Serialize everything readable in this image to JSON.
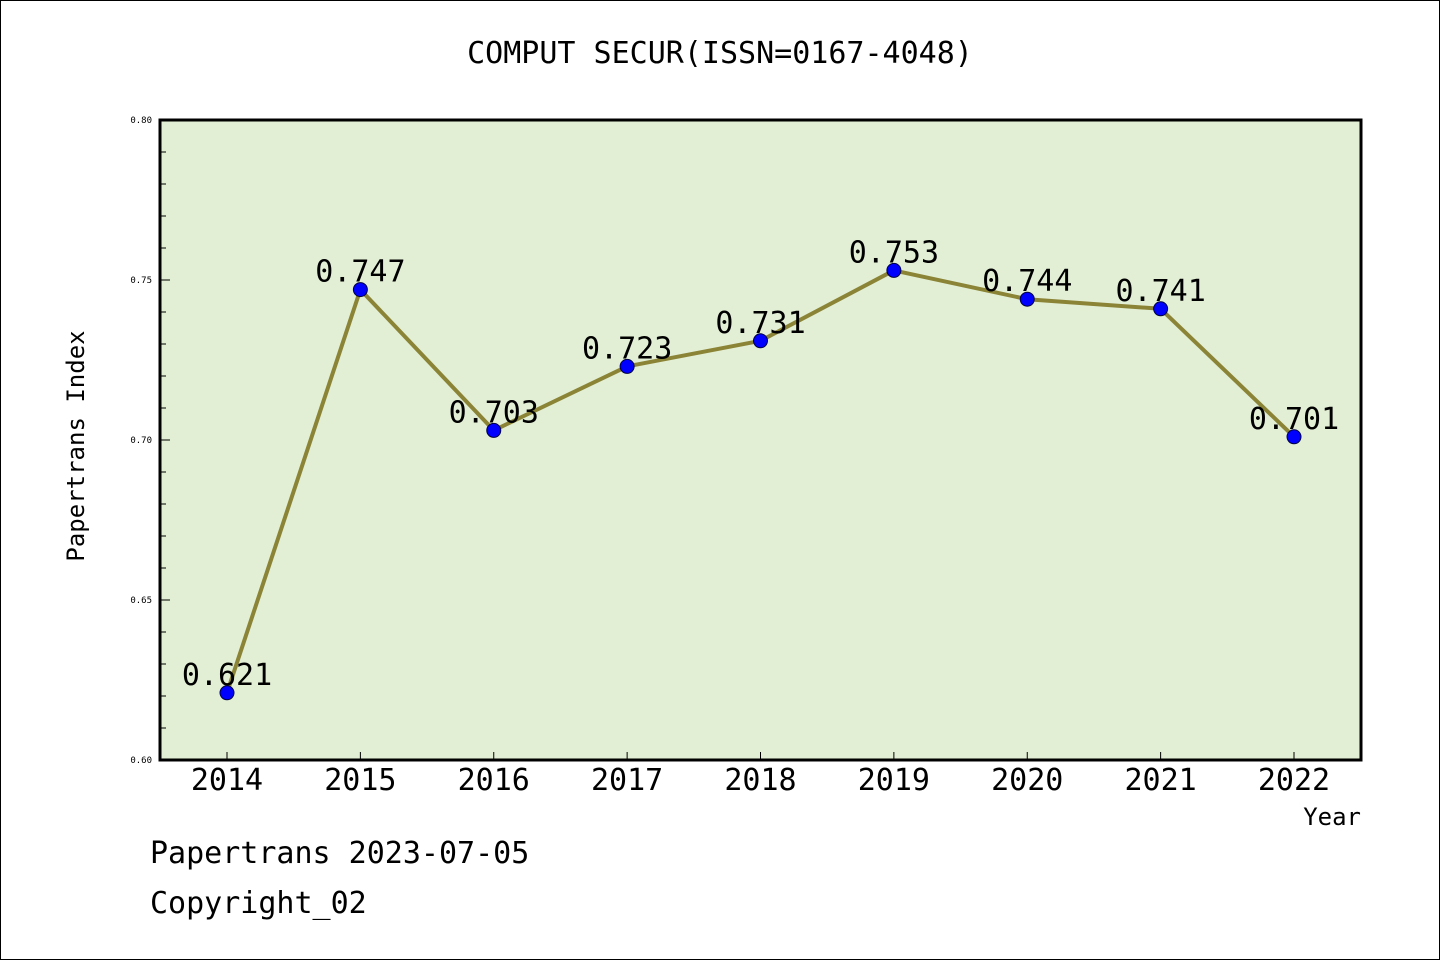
{
  "chart_data": {
    "type": "line",
    "title": "COMPUT SECUR(ISSN=0167-4048)",
    "xlabel": "Year",
    "ylabel": "Papertrans Index",
    "categories": [
      "2014",
      "2015",
      "2016",
      "2017",
      "2018",
      "2019",
      "2020",
      "2021",
      "2022"
    ],
    "series": [
      {
        "values": [
          0.621,
          0.747,
          0.703,
          0.723,
          0.731,
          0.753,
          0.744,
          0.741,
          0.701
        ],
        "labels": [
          "0.621",
          "0.747",
          "0.703",
          "0.723",
          "0.731",
          "0.753",
          "0.744",
          "0.741",
          "0.701"
        ]
      }
    ],
    "ylim": [
      0.6,
      0.8
    ],
    "yticks": [
      "0.60",
      "0.65",
      "0.70",
      "0.75",
      "0.80"
    ],
    "grid": false,
    "colors": {
      "plot_background": "#e2efd5",
      "line": "#8b8436",
      "marker": "#0000ff"
    }
  },
  "footer": {
    "line1": "Papertrans 2023-07-05",
    "line2": "Copyright_02"
  }
}
